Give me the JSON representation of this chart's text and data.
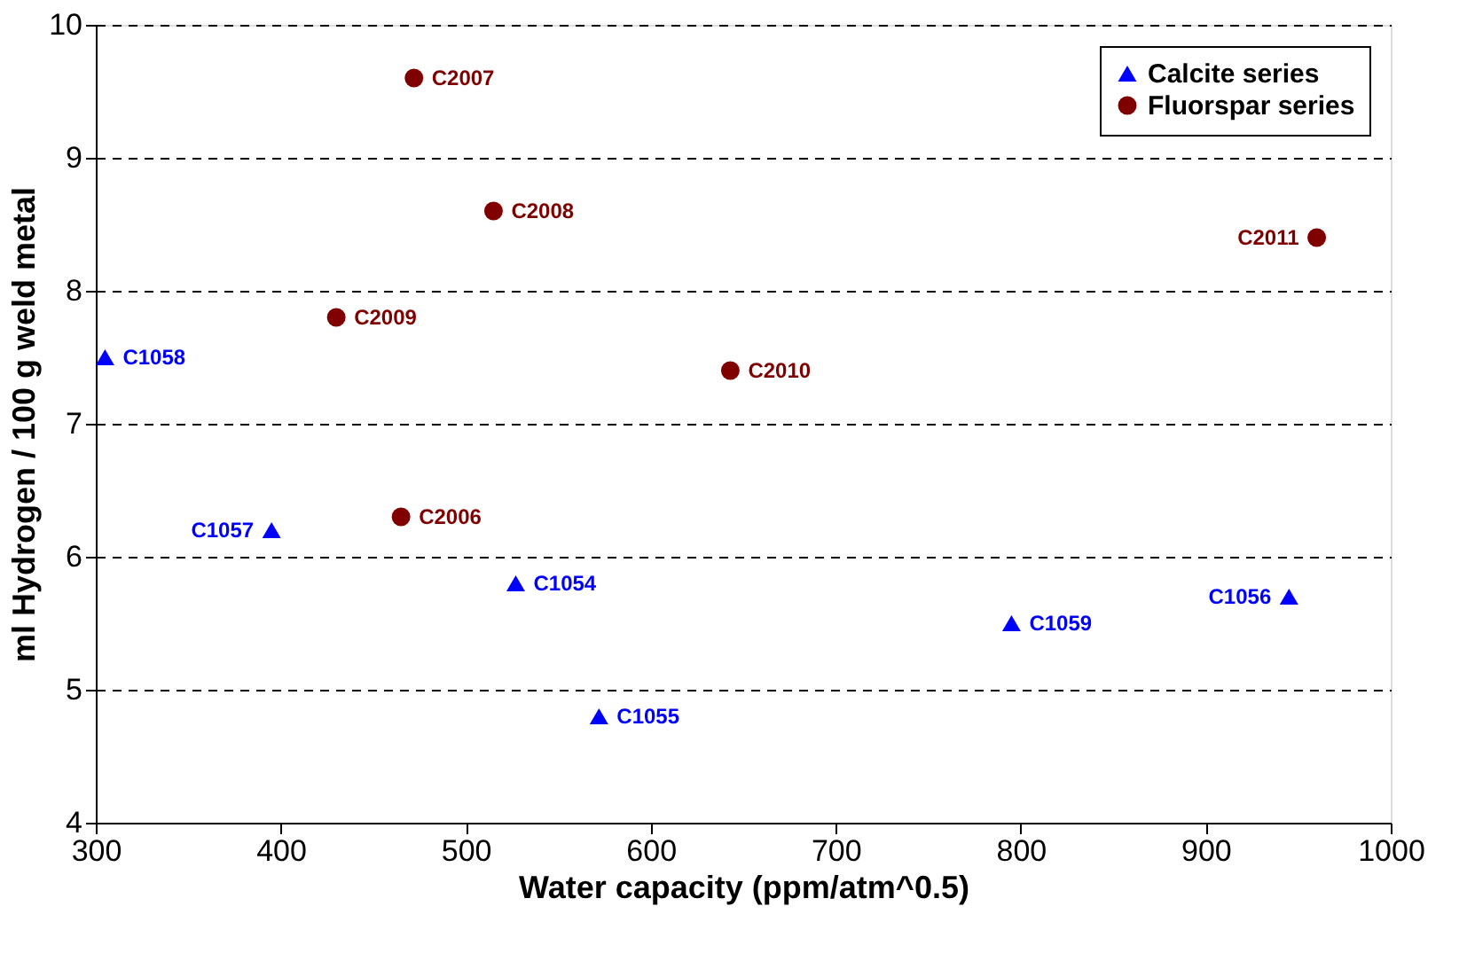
{
  "chart_data": {
    "type": "scatter",
    "xlabel": "Water capacity (ppm/atm^0.5)",
    "ylabel": "ml Hydrogen / 100 g weld metal",
    "xlim": [
      300,
      1000
    ],
    "xticks": [
      300,
      400,
      500,
      600,
      700,
      800,
      900,
      1000
    ],
    "ylim": [
      4,
      10
    ],
    "yticks": [
      4,
      5,
      6,
      7,
      8,
      9,
      10
    ],
    "grid": "y",
    "legend": "top right",
    "series": [
      {
        "name": "Calcite series",
        "color": "#0000ff",
        "marker": "triangle",
        "x": [
          305,
          395,
          527,
          572,
          795,
          945
        ],
        "values": [
          7.5,
          6.2,
          5.8,
          4.8,
          5.5,
          5.7
        ]
      },
      {
        "name": "Fluorspar series",
        "color": "#800000",
        "marker": "circle",
        "x": [
          472,
          515,
          430,
          643,
          465,
          960
        ],
        "values": [
          9.6,
          8.6,
          7.8,
          7.4,
          6.3,
          8.4
        ]
      }
    ],
    "annotations": [
      {
        "text": "C1058",
        "x": 305,
        "y": 7.5
      },
      {
        "text": "C1057",
        "x": 395,
        "y": 6.2
      },
      {
        "text": "C1054",
        "x": 527,
        "y": 5.8
      },
      {
        "text": "C1055",
        "x": 572,
        "y": 4.8
      },
      {
        "text": "C1059",
        "x": 795,
        "y": 5.5
      },
      {
        "text": "C1056",
        "x": 945,
        "y": 5.7
      },
      {
        "text": "C2007",
        "x": 472,
        "y": 9.6
      },
      {
        "text": "C2008",
        "x": 515,
        "y": 8.6
      },
      {
        "text": "C2009",
        "x": 430,
        "y": 7.8
      },
      {
        "text": "C2010",
        "x": 643,
        "y": 7.4
      },
      {
        "text": "C2006",
        "x": 465,
        "y": 6.3
      },
      {
        "text": "C2011",
        "x": 960,
        "y": 8.4
      }
    ]
  }
}
